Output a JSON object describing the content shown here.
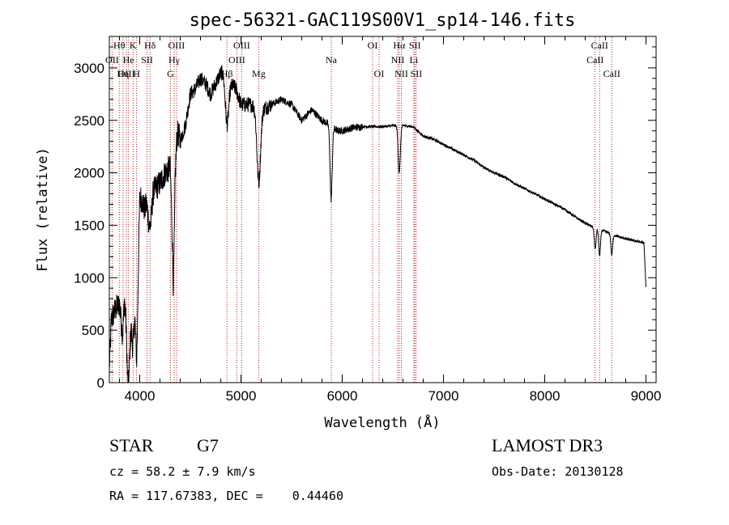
{
  "chart_data": {
    "type": "line",
    "title": "spec-56321-GAC119S00V1_sp14-146.fits",
    "xlabel": "Wavelength (Å)",
    "ylabel": "Flux (relative)",
    "xlim": [
      3700,
      9100
    ],
    "ylim": [
      0,
      3300
    ],
    "xticks": [
      4000,
      5000,
      6000,
      7000,
      8000,
      9000
    ],
    "yticks": [
      0,
      500,
      1000,
      1500,
      2000,
      2500,
      3000
    ],
    "spectrum_anchors": [
      [
        3700,
        150
      ],
      [
        3720,
        600
      ],
      [
        3760,
        700
      ],
      [
        3800,
        750
      ],
      [
        3830,
        450
      ],
      [
        3850,
        800
      ],
      [
        3880,
        500
      ],
      [
        3920,
        950
      ],
      [
        3950,
        1250
      ],
      [
        3970,
        900
      ],
      [
        4000,
        1800
      ],
      [
        4050,
        1650
      ],
      [
        4100,
        2000
      ],
      [
        4150,
        1850
      ],
      [
        4200,
        1900
      ],
      [
        4250,
        2000
      ],
      [
        4300,
        2050
      ],
      [
        4330,
        1500
      ],
      [
        4350,
        2500
      ],
      [
        4400,
        2300
      ],
      [
        4450,
        2450
      ],
      [
        4500,
        2750
      ],
      [
        4550,
        2800
      ],
      [
        4600,
        2900
      ],
      [
        4650,
        2850
      ],
      [
        4700,
        2750
      ],
      [
        4750,
        2850
      ],
      [
        4800,
        2950
      ],
      [
        4850,
        3000
      ],
      [
        4900,
        2850
      ],
      [
        4950,
        2800
      ],
      [
        5000,
        2650
      ],
      [
        5100,
        2650
      ],
      [
        5200,
        2600
      ],
      [
        5300,
        2650
      ],
      [
        5400,
        2700
      ],
      [
        5500,
        2650
      ],
      [
        5600,
        2500
      ],
      [
        5700,
        2600
      ],
      [
        5800,
        2500
      ],
      [
        5890,
        2450
      ],
      [
        5950,
        2400
      ],
      [
        6000,
        2400
      ],
      [
        6100,
        2430
      ],
      [
        6200,
        2440
      ],
      [
        6300,
        2440
      ],
      [
        6400,
        2440
      ],
      [
        6500,
        2450
      ],
      [
        6600,
        2450
      ],
      [
        6700,
        2440
      ],
      [
        6800,
        2350
      ],
      [
        6900,
        2320
      ],
      [
        7000,
        2270
      ],
      [
        7100,
        2220
      ],
      [
        7200,
        2170
      ],
      [
        7300,
        2120
      ],
      [
        7400,
        2050
      ],
      [
        7500,
        2000
      ],
      [
        7600,
        1960
      ],
      [
        7700,
        1900
      ],
      [
        7800,
        1850
      ],
      [
        7900,
        1800
      ],
      [
        8000,
        1750
      ],
      [
        8100,
        1700
      ],
      [
        8200,
        1650
      ],
      [
        8300,
        1580
      ],
      [
        8400,
        1520
      ],
      [
        8500,
        1470
      ],
      [
        8600,
        1440
      ],
      [
        8700,
        1400
      ],
      [
        8800,
        1370
      ],
      [
        8900,
        1350
      ],
      [
        8980,
        1330
      ],
      [
        9000,
        900
      ]
    ],
    "absorption_features": [
      [
        3890,
        600,
        20
      ],
      [
        3934,
        700,
        20
      ],
      [
        3969,
        650,
        20
      ],
      [
        4101,
        500,
        25
      ],
      [
        4340,
        700,
        20
      ],
      [
        4861,
        500,
        25
      ],
      [
        5175,
        700,
        25
      ],
      [
        5890,
        700,
        15
      ],
      [
        6563,
        450,
        15
      ],
      [
        8498,
        200,
        12
      ],
      [
        8542,
        250,
        12
      ],
      [
        8662,
        200,
        12
      ]
    ],
    "lines": [
      {
        "label": "Hθ",
        "x": 3798,
        "row": 0
      },
      {
        "label": "OII",
        "x": 3727,
        "row": 1
      },
      {
        "label": "OIII",
        "x": 3869,
        "row": 2
      },
      {
        "label": "K",
        "x": 3934,
        "row": 0
      },
      {
        "label": "He",
        "x": 3889,
        "row": 1
      },
      {
        "label": "Hη",
        "x": 3835,
        "row": 2
      },
      {
        "label": "H",
        "x": 3969,
        "row": 2
      },
      {
        "label": "Hδ",
        "x": 4101,
        "row": 0
      },
      {
        "label": "SII",
        "x": 4072,
        "row": 1
      },
      {
        "label": "OIII",
        "x": 4363,
        "row": 0
      },
      {
        "label": "Hγ",
        "x": 4340,
        "row": 1
      },
      {
        "label": "G",
        "x": 4304,
        "row": 2
      },
      {
        "label": "OIII",
        "x": 5007,
        "row": 0
      },
      {
        "label": "OIII",
        "x": 4959,
        "row": 1
      },
      {
        "label": "Hβ",
        "x": 4861,
        "row": 2
      },
      {
        "label": "Mg",
        "x": 5175,
        "row": 2
      },
      {
        "label": "Na",
        "x": 5892,
        "row": 1
      },
      {
        "label": "OI",
        "x": 6300,
        "row": 0
      },
      {
        "label": "OI",
        "x": 6364,
        "row": 2
      },
      {
        "label": "Hα",
        "x": 6563,
        "row": 0
      },
      {
        "label": "NII",
        "x": 6548,
        "row": 1
      },
      {
        "label": "NII",
        "x": 6584,
        "row": 2
      },
      {
        "label": "SII",
        "x": 6717,
        "row": 0
      },
      {
        "label": "Li",
        "x": 6707,
        "row": 1
      },
      {
        "label": "SII",
        "x": 6731,
        "row": 2
      },
      {
        "label": "CaII",
        "x": 8542,
        "row": 0
      },
      {
        "label": "CaII",
        "x": 8498,
        "row": 1
      },
      {
        "label": "CaII",
        "x": 8662,
        "row": 2
      }
    ]
  },
  "info": {
    "class_label": "STAR",
    "subclass": "G7",
    "survey": "LAMOST DR3",
    "cz": "cz = 58.2 ± 7.9 km/s",
    "obs_date": "Obs-Date: 20130128",
    "coords": "RA = 117.67383, DEC =    0.44460"
  },
  "colors": {
    "line_marker": "#c01818",
    "spectrum": "#000000"
  }
}
